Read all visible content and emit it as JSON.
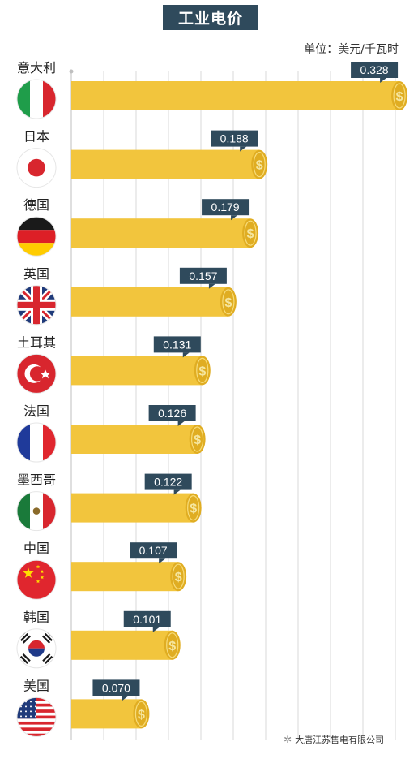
{
  "title": "工业电价",
  "unit": "单位：美元/千瓦时",
  "watermark": "大唐江苏售电有限公司",
  "colors": {
    "bar": "#f2c53d",
    "bar_edge": "#e0ad22",
    "label_bg": "#2f4a5c",
    "grid": "#d8d8d8"
  },
  "chart_data": {
    "type": "bar",
    "orientation": "horizontal",
    "title": "工业电价",
    "unit": "单位：美元/千瓦时",
    "categories": [
      "意大利",
      "日本",
      "德国",
      "英国",
      "土耳其",
      "法国",
      "墨西哥",
      "中国",
      "韩国",
      "美国"
    ],
    "values": [
      0.328,
      0.188,
      0.179,
      0.157,
      0.131,
      0.126,
      0.122,
      0.107,
      0.101,
      0.07
    ],
    "labels": [
      "0.328",
      "0.188",
      "0.179",
      "0.157",
      "0.131",
      "0.126",
      "0.122",
      "0.107",
      "0.101",
      "0.070"
    ],
    "flags": [
      "italy-flag-icon",
      "japan-flag-icon",
      "germany-flag-icon",
      "uk-flag-icon",
      "turkey-flag-icon",
      "france-flag-icon",
      "mexico-flag-icon",
      "china-flag-icon",
      "korea-flag-icon",
      "usa-flag-icon"
    ],
    "grid": true,
    "legend": "none"
  }
}
